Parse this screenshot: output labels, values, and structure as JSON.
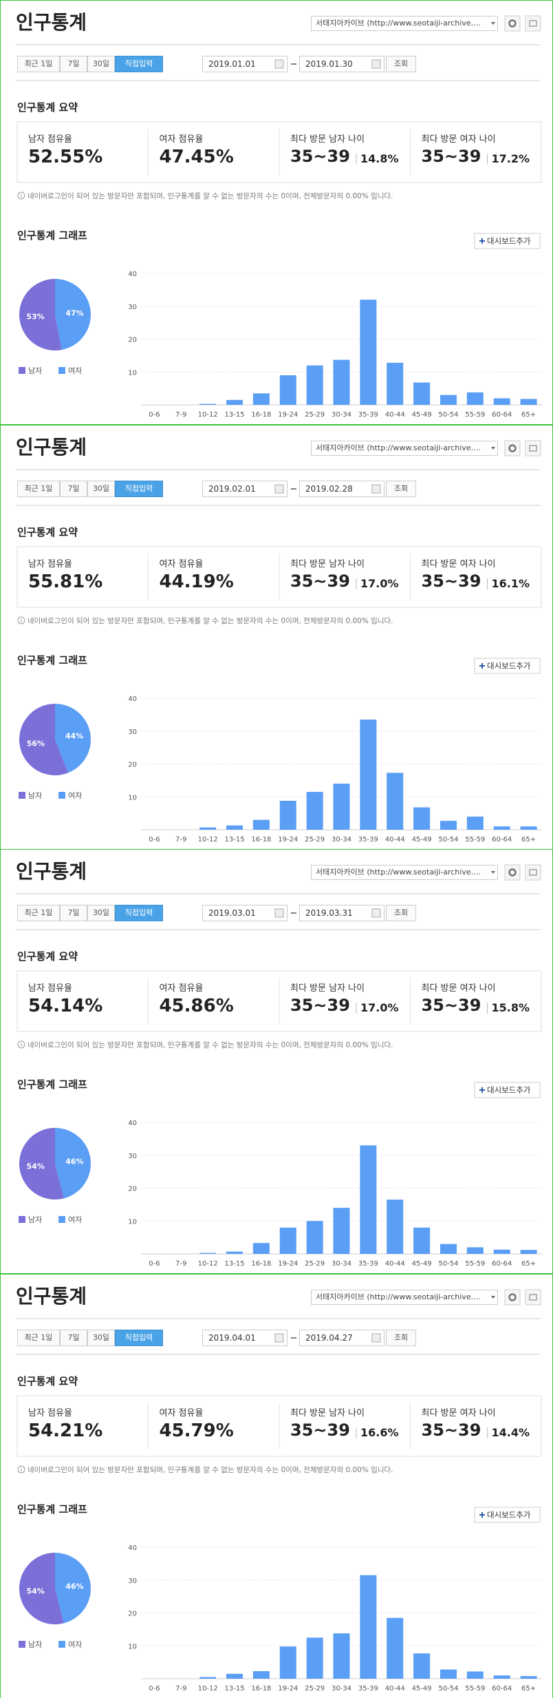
{
  "panels": [
    {
      "title": "인구통계",
      "site_select": "서태지아카이브 (http://www.seotaiji-archive.…",
      "period_buttons": [
        "최근 1일",
        "7일",
        "30일",
        "직접입력"
      ],
      "date_from": "2019.01.01",
      "date_to": "2019.01.30",
      "search_button": "조회",
      "summary_title": "인구통계 요약",
      "summary": [
        {
          "label": "남자 점유율",
          "value": "52.55%"
        },
        {
          "label": "여자 점유율",
          "value": "47.45%"
        },
        {
          "label": "최다 방문 남자 나이",
          "value": "35~39",
          "share": "14.8%"
        },
        {
          "label": "최다 방문 여자 나이",
          "value": "35~39",
          "share": "17.2%"
        }
      ],
      "note": "네이버로그인이 되어 있는 방문자만 포함되며, 인구통계를 알 수 없는 방문자의 수는 0이며, 전체방문자의 0.00% 입니다.",
      "graph_title": "인구통계 그래프",
      "dashboard_button": "대시보드추가",
      "pie_chart": {
        "type": "pie",
        "categories": [
          "남자",
          "여자"
        ],
        "values": [
          53,
          47
        ],
        "value_labels": [
          "53%",
          "47%"
        ],
        "colors": [
          "#7b6fd8",
          "#5a9ef5"
        ]
      },
      "bar_chart": {
        "type": "bar",
        "categories": [
          "0-6",
          "7-9",
          "10-12",
          "13-15",
          "16-18",
          "19-24",
          "25-29",
          "30-34",
          "35-39",
          "40-44",
          "45-49",
          "50-54",
          "55-59",
          "60-64",
          "65+"
        ],
        "values": [
          0,
          0,
          0.3,
          1.5,
          3.5,
          9,
          12,
          13.7,
          32,
          12.8,
          6.8,
          3,
          3.8,
          2,
          1.8
        ],
        "color": "#5a9ef5",
        "ylim": [
          0,
          40
        ],
        "yticks": [
          10,
          20,
          30,
          40
        ],
        "grid": true
      }
    },
    {
      "title": "인구통계",
      "site_select": "서태지아카이브 (http://www.seotaiji-archive.…",
      "period_buttons": [
        "최근 1일",
        "7일",
        "30일",
        "직접입력"
      ],
      "date_from": "2019.02.01",
      "date_to": "2019.02.28",
      "search_button": "조회",
      "summary_title": "인구통계 요약",
      "summary": [
        {
          "label": "남자 점유율",
          "value": "55.81%"
        },
        {
          "label": "여자 점유율",
          "value": "44.19%"
        },
        {
          "label": "최다 방문 남자 나이",
          "value": "35~39",
          "share": "17.0%"
        },
        {
          "label": "최다 방문 여자 나이",
          "value": "35~39",
          "share": "16.1%"
        }
      ],
      "note": "네이버로그인이 되어 있는 방문자만 포함되며, 인구통계를 알 수 없는 방문자의 수는 0이며, 전체방문자의 0.00% 입니다.",
      "graph_title": "인구통계 그래프",
      "dashboard_button": "대시보드추가",
      "pie_chart": {
        "type": "pie",
        "categories": [
          "남자",
          "여자"
        ],
        "values": [
          56,
          44
        ],
        "value_labels": [
          "56%",
          "44%"
        ],
        "colors": [
          "#7b6fd8",
          "#5a9ef5"
        ]
      },
      "bar_chart": {
        "type": "bar",
        "categories": [
          "0-6",
          "7-9",
          "10-12",
          "13-15",
          "16-18",
          "19-24",
          "25-29",
          "30-34",
          "35-39",
          "40-44",
          "45-49",
          "50-54",
          "55-59",
          "60-64",
          "65+"
        ],
        "values": [
          0,
          0,
          0.7,
          1.3,
          3,
          8.8,
          11.5,
          14,
          33.5,
          17.3,
          6.8,
          2.7,
          4,
          1,
          1
        ],
        "color": "#5a9ef5",
        "ylim": [
          0,
          40
        ],
        "yticks": [
          10,
          20,
          30,
          40
        ],
        "grid": true
      }
    },
    {
      "title": "인구통계",
      "site_select": "서태지아카이브 (http://www.seotaiji-archive.…",
      "period_buttons": [
        "최근 1일",
        "7일",
        "30일",
        "직접입력"
      ],
      "date_from": "2019.03.01",
      "date_to": "2019.03.31",
      "search_button": "조회",
      "summary_title": "인구통계 요약",
      "summary": [
        {
          "label": "남자 점유율",
          "value": "54.14%"
        },
        {
          "label": "여자 점유율",
          "value": "45.86%"
        },
        {
          "label": "최다 방문 남자 나이",
          "value": "35~39",
          "share": "17.0%"
        },
        {
          "label": "최다 방문 여자 나이",
          "value": "35~39",
          "share": "15.8%"
        }
      ],
      "note": "네이버로그인이 되어 있는 방문자만 포함되며, 인구통계를 알 수 없는 방문자의 수는 0이며, 전체방문자의 0.00% 입니다.",
      "graph_title": "인구통계 그래프",
      "dashboard_button": "대시보드추가",
      "pie_chart": {
        "type": "pie",
        "categories": [
          "남자",
          "여자"
        ],
        "values": [
          54,
          46
        ],
        "value_labels": [
          "54%",
          "46%"
        ],
        "colors": [
          "#7b6fd8",
          "#5a9ef5"
        ]
      },
      "bar_chart": {
        "type": "bar",
        "categories": [
          "0-6",
          "7-9",
          "10-12",
          "13-15",
          "16-18",
          "19-24",
          "25-29",
          "30-34",
          "35-39",
          "40-44",
          "45-49",
          "50-54",
          "55-59",
          "60-64",
          "65+"
        ],
        "values": [
          0,
          0,
          0.3,
          0.7,
          3.3,
          8,
          10,
          14,
          33,
          16.5,
          8,
          3,
          2,
          1.3,
          1.2
        ],
        "color": "#5a9ef5",
        "ylim": [
          0,
          40
        ],
        "yticks": [
          10,
          20,
          30,
          40
        ],
        "grid": true
      }
    },
    {
      "title": "인구통계",
      "site_select": "서태지아카이브 (http://www.seotaiji-archive.…",
      "period_buttons": [
        "최근 1일",
        "7일",
        "30일",
        "직접입력"
      ],
      "date_from": "2019.04.01",
      "date_to": "2019.04.27",
      "search_button": "조회",
      "summary_title": "인구통계 요약",
      "summary": [
        {
          "label": "남자 점유율",
          "value": "54.21%"
        },
        {
          "label": "여자 점유율",
          "value": "45.79%"
        },
        {
          "label": "최다 방문 남자 나이",
          "value": "35~39",
          "share": "16.6%"
        },
        {
          "label": "최다 방문 여자 나이",
          "value": "35~39",
          "share": "14.4%"
        }
      ],
      "note": "네이버로그인이 되어 있는 방문자만 포함되며, 인구통계를 알 수 없는 방문자의 수는 0이며, 전체방문자의 0.00% 입니다.",
      "graph_title": "인구통계 그래프",
      "dashboard_button": "대시보드추가",
      "pie_chart": {
        "type": "pie",
        "categories": [
          "남자",
          "여자"
        ],
        "values": [
          54,
          46
        ],
        "value_labels": [
          "54%",
          "46%"
        ],
        "colors": [
          "#7b6fd8",
          "#5a9ef5"
        ]
      },
      "bar_chart": {
        "type": "bar",
        "categories": [
          "0-6",
          "7-9",
          "10-12",
          "13-15",
          "16-18",
          "19-24",
          "25-29",
          "30-34",
          "35-39",
          "40-44",
          "45-49",
          "50-54",
          "55-59",
          "60-64",
          "65+"
        ],
        "values": [
          0,
          0,
          0.5,
          1.5,
          2.3,
          9.8,
          12.5,
          13.8,
          31.5,
          18.5,
          7.7,
          2.8,
          2.2,
          1,
          0.8
        ],
        "color": "#5a9ef5",
        "ylim": [
          0,
          40
        ],
        "yticks": [
          10,
          20,
          30,
          40
        ],
        "grid": true
      }
    }
  ]
}
